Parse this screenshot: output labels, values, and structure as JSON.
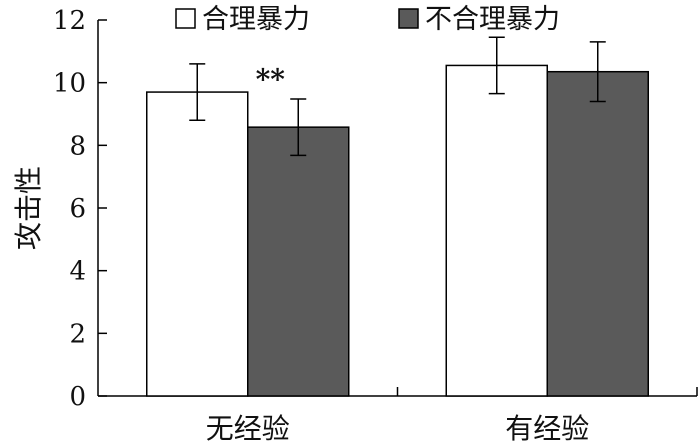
{
  "chart_data": {
    "type": "bar",
    "ylabel": "攻击性",
    "xlabel": "",
    "ylim": [
      0,
      12
    ],
    "yticks": [
      0,
      2,
      4,
      6,
      8,
      10,
      12
    ],
    "categories": [
      "无经验",
      "有经验"
    ],
    "series": [
      {
        "name": "合理暴力",
        "color": "#ffffff",
        "values": [
          9.7,
          10.55
        ],
        "errors": [
          0.9,
          0.9
        ]
      },
      {
        "name": "不合理暴力",
        "color": "#5a5a5a",
        "values": [
          8.58,
          10.35
        ],
        "errors": [
          0.9,
          0.95
        ]
      }
    ],
    "annotations": [
      {
        "text": "**",
        "category": 0,
        "series": 1
      }
    ],
    "legend": "top-center",
    "grid": false
  }
}
